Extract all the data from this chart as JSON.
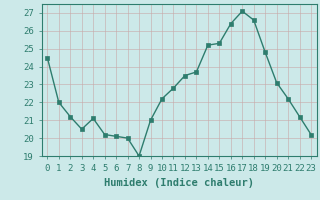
{
  "x": [
    0,
    1,
    2,
    3,
    4,
    5,
    6,
    7,
    8,
    9,
    10,
    11,
    12,
    13,
    14,
    15,
    16,
    17,
    18,
    19,
    20,
    21,
    22,
    23
  ],
  "y": [
    24.5,
    22.0,
    21.2,
    20.5,
    21.1,
    20.2,
    20.1,
    20.0,
    19.0,
    21.0,
    22.2,
    22.8,
    23.5,
    23.7,
    25.2,
    25.3,
    26.4,
    27.1,
    26.6,
    24.8,
    23.1,
    22.2,
    21.2,
    20.2
  ],
  "line_color": "#2e7d6e",
  "marker": "s",
  "marker_size": 2.5,
  "line_width": 1.0,
  "bg_color": "#cce9e9",
  "grid_color": "#b8d4d4",
  "xlabel": "Humidex (Indice chaleur)",
  "xlabel_fontsize": 7.5,
  "xlim": [
    -0.5,
    23.5
  ],
  "ylim": [
    19,
    27.5
  ],
  "yticks": [
    19,
    20,
    21,
    22,
    23,
    24,
    25,
    26,
    27
  ],
  "xtick_labels": [
    "0",
    "1",
    "2",
    "3",
    "4",
    "5",
    "6",
    "7",
    "8",
    "9",
    "10",
    "11",
    "12",
    "13",
    "14",
    "15",
    "16",
    "17",
    "18",
    "19",
    "20",
    "21",
    "22",
    "23"
  ],
  "tick_fontsize": 6.5,
  "tick_color": "#2e7d6e",
  "label_color": "#2e7d6e",
  "spine_color": "#2e7d6e"
}
